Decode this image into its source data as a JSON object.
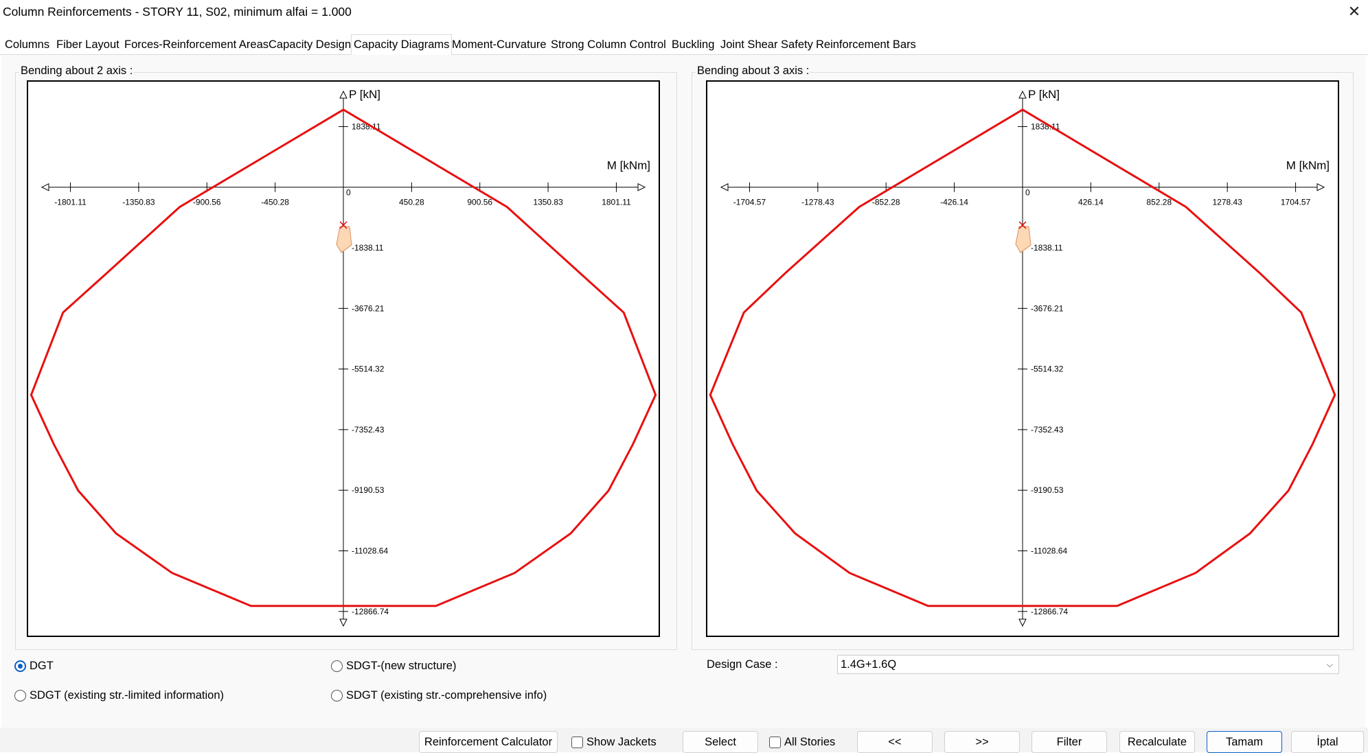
{
  "window": {
    "title": "Column Reinforcements - STORY 11, S02, minimum alfai = 1.000",
    "close_glyph": "✕"
  },
  "tabs": [
    {
      "label": "Columns"
    },
    {
      "label": "Fiber Layout"
    },
    {
      "label": "Forces-Reinforcement Areas"
    },
    {
      "label": "Capacity Design"
    },
    {
      "label": "Capacity Diagrams",
      "active": true
    },
    {
      "label": "Moment-Curvature"
    },
    {
      "label": "Strong Column Control"
    },
    {
      "label": "Buckling"
    },
    {
      "label": "Joint Shear Safety"
    },
    {
      "label": "Reinforcement Bars"
    }
  ],
  "left_group_label": "Bending about 2 axis :",
  "right_group_label": "Bending about 3 axis :",
  "colors": {
    "curve": "#e81010",
    "demand_fill": "#fcd8b4",
    "demand_stroke": "#d89060",
    "axis": "#000000"
  },
  "chart_data": [
    {
      "type": "line",
      "title": "Bending about 2 axis :",
      "xlabel": "M [kNm]",
      "ylabel": "P [kN]",
      "x_ticks": [
        -1801.11,
        -1350.83,
        -900.56,
        -450.28,
        450.28,
        900.56,
        1350.83,
        1801.11
      ],
      "x_tick_labels": [
        "-1801.11",
        "-1350.83",
        "-900.56",
        "-450.28",
        "450.28",
        "900.56",
        "1350.83",
        "1801.11"
      ],
      "y_ticks": [
        -12866.74,
        -11028.64,
        -9190.53,
        -7352.43,
        -5514.32,
        -3676.21,
        -1838.11,
        1838.11
      ],
      "y_tick_labels": [
        "-12866.74",
        "-11028.64",
        "-9190.53",
        "-7352.43",
        "-5514.32",
        "-3676.21",
        "-1838.11",
        "1838.11"
      ],
      "origin_label": "0",
      "xlim": [
        -2080,
        2080
      ],
      "ylim": [
        3200,
        -13600
      ],
      "series": [
        {
          "values": [
            {
              "x": -610,
              "y": -12700
            },
            {
              "x": 610,
              "y": -12700
            },
            {
              "x": 1130,
              "y": -11700
            },
            {
              "x": 1500,
              "y": -10500
            },
            {
              "x": 1750,
              "y": -9200
            },
            {
              "x": 1910,
              "y": -7800
            },
            {
              "x": 2060,
              "y": -6300
            },
            {
              "x": 1850,
              "y": -3800
            },
            {
              "x": 1560,
              "y": -2600
            },
            {
              "x": 1080,
              "y": -600
            },
            {
              "x": 0,
              "y": 2350
            },
            {
              "x": -1080,
              "y": -600
            },
            {
              "x": -1560,
              "y": -2600
            },
            {
              "x": -1850,
              "y": -3800
            },
            {
              "x": -2060,
              "y": -6300
            },
            {
              "x": -1910,
              "y": -7800
            },
            {
              "x": -1750,
              "y": -9200
            },
            {
              "x": -1500,
              "y": -10500
            },
            {
              "x": -1130,
              "y": -11700
            },
            {
              "x": -610,
              "y": -12700
            }
          ]
        }
      ],
      "demand_point": {
        "x": 0,
        "y": -1400
      }
    },
    {
      "type": "line",
      "title": "Bending about 3 axis :",
      "xlabel": "M [kNm]",
      "ylabel": "P [kN]",
      "x_ticks": [
        -1704.57,
        -1278.43,
        -852.28,
        -426.14,
        426.14,
        852.28,
        1278.43,
        1704.57
      ],
      "x_tick_labels": [
        "-1704.57",
        "-1278.43",
        "-852.28",
        "-426.14",
        "426.14",
        "852.28",
        "1278.43",
        "1704.57"
      ],
      "y_ticks": [
        -12866.74,
        -11028.64,
        -9190.53,
        -7352.43,
        -5514.32,
        -3676.21,
        -1838.11,
        1838.11
      ],
      "y_tick_labels": [
        "-12866.74",
        "-11028.64",
        "-9190.53",
        "-7352.43",
        "-5514.32",
        "-3676.21",
        "-1838.11",
        "1838.11"
      ],
      "origin_label": "0",
      "xlim": [
        -1968,
        1968
      ],
      "ylim": [
        3200,
        -13600
      ],
      "series": [
        {
          "values": [
            {
              "x": -590,
              "y": -12700
            },
            {
              "x": 590,
              "y": -12700
            },
            {
              "x": 1080,
              "y": -11700
            },
            {
              "x": 1420,
              "y": -10500
            },
            {
              "x": 1660,
              "y": -9200
            },
            {
              "x": 1810,
              "y": -7800
            },
            {
              "x": 1950,
              "y": -6300
            },
            {
              "x": 1740,
              "y": -3800
            },
            {
              "x": 1480,
              "y": -2600
            },
            {
              "x": 1020,
              "y": -600
            },
            {
              "x": 0,
              "y": 2350
            },
            {
              "x": -1020,
              "y": -600
            },
            {
              "x": -1480,
              "y": -2600
            },
            {
              "x": -1740,
              "y": -3800
            },
            {
              "x": -1950,
              "y": -6300
            },
            {
              "x": -1810,
              "y": -7800
            },
            {
              "x": -1660,
              "y": -9200
            },
            {
              "x": -1420,
              "y": -10500
            },
            {
              "x": -1080,
              "y": -11700
            },
            {
              "x": -590,
              "y": -12700
            }
          ]
        }
      ],
      "demand_point": {
        "x": 0,
        "y": -1400
      }
    }
  ],
  "options": {
    "dgt": "DGT",
    "sdgt_new": "SDGT-(new structure)",
    "sdgt_limited": "SDGT (existing str.-limited information)",
    "sdgt_comprehensive": "SDGT (existing str.-comprehensive info)",
    "selected": "dgt"
  },
  "design_case": {
    "label": "Design Case :",
    "value": "1.4G+1.6Q"
  },
  "footer": {
    "reinforcement_calculator": "Reinforcement Calculator",
    "show_jackets": "Show Jackets",
    "select": "Select",
    "all_stories": "All Stories",
    "prev": "<<",
    "next": ">>",
    "filter": "Filter",
    "recalculate": "Recalculate",
    "ok": "Tamam",
    "cancel": "İptal"
  }
}
